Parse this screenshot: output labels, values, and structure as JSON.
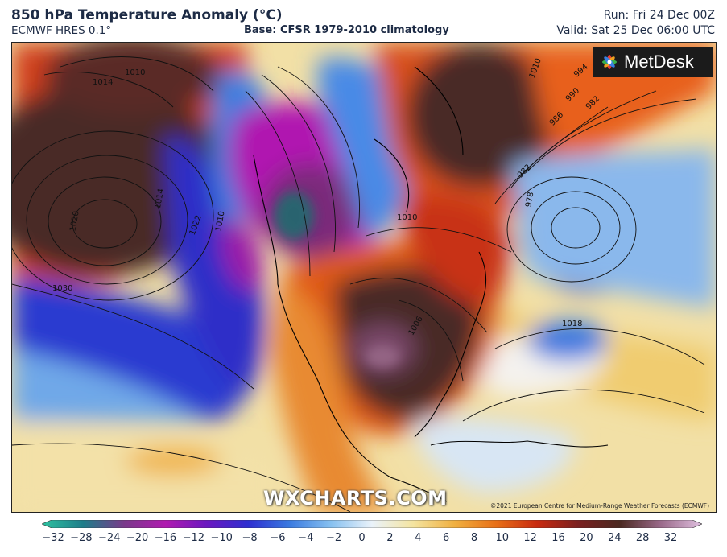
{
  "header": {
    "title": "850 hPa Temperature Anomaly (°C)",
    "model": "ECMWF HRES 0.1°",
    "base": "Base: CFSR 1979-2010 climatology",
    "run": "Run: Fri 24 Dec 00Z",
    "valid": "Valid: Sat 25 Dec 06:00 UTC"
  },
  "map": {
    "logo_text": "MetDesk",
    "watermark": "WXCHARTS.COM",
    "copyright": "©2021 European Centre for Medium-Range Weather Forecasts (ECMWF)",
    "isobar_labels": [
      "1014",
      "1010",
      "1030",
      "1020",
      "1022",
      "1014",
      "1010",
      "1010",
      "1006",
      "1018",
      "1010",
      "994",
      "990",
      "986",
      "982",
      "982",
      "978"
    ]
  },
  "colorbar": {
    "ticks": [
      "−32",
      "−28",
      "−24",
      "−20",
      "−16",
      "−12",
      "−10",
      "−8",
      "−6",
      "−4",
      "−2",
      "0",
      "2",
      "4",
      "6",
      "8",
      "10",
      "12",
      "16",
      "20",
      "24",
      "28",
      "32"
    ],
    "colors": [
      "#2ec2a0",
      "#1e7d8a",
      "#7a3a8a",
      "#b01ab0",
      "#6a18c0",
      "#2e2ed0",
      "#3a7ae0",
      "#86c0f0",
      "#eaf2fa",
      "#f4e4a0",
      "#f0b040",
      "#e87018",
      "#c82a10",
      "#7a2020",
      "#4a2820",
      "#9a6a8a",
      "#e0c0e0"
    ]
  }
}
